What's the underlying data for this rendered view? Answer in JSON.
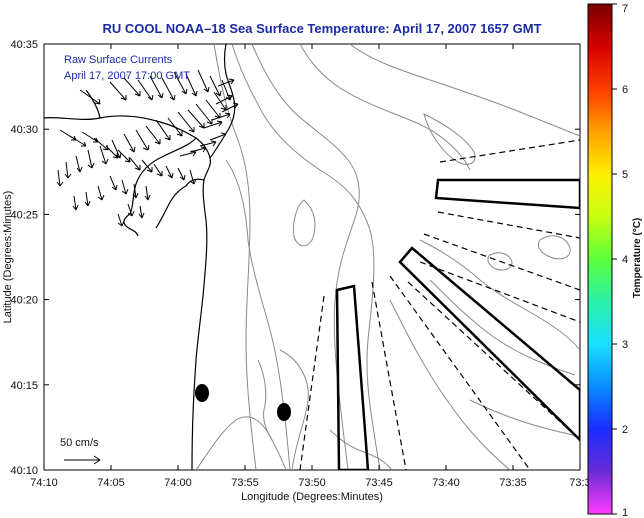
{
  "title": "RU COOL  NOAA–18  Sea Surface Temperature:  April 17, 2007 1657 GMT",
  "legend": {
    "line1": "Raw Surface Currents",
    "line2": "April 17, 2007 17:00 GMT"
  },
  "scale_label": "50 cm/s",
  "x_axis": {
    "label": "Longitude (Degrees:Minutes)",
    "ticks": [
      "74:10",
      "74:05",
      "74:00",
      "73:55",
      "73:50",
      "73:45",
      "73:40",
      "73:35",
      "73:3"
    ]
  },
  "y_axis": {
    "label": "Latitude (Degrees:Minutes)",
    "ticks": [
      "40:35",
      "40:30",
      "40:25",
      "40:20",
      "40:15",
      "40:10"
    ]
  },
  "colorbar": {
    "label": "Temperature (°C)",
    "ticks": [
      "7",
      "6",
      "5",
      "4",
      "3",
      "2",
      "1"
    ],
    "range": [
      1,
      7
    ],
    "colors": [
      "#ff3cff",
      "#6a2bd6",
      "#1a2cff",
      "#0a8cff",
      "#18e0ff",
      "#2af0a8",
      "#5cff3a",
      "#c8ff12",
      "#ffee00",
      "#ffa000",
      "#ff3c00",
      "#d60000",
      "#7a0000"
    ]
  },
  "colors": {
    "title": "#1a2aa8",
    "coast": "#000000",
    "contour": "#8a8a8a"
  }
}
